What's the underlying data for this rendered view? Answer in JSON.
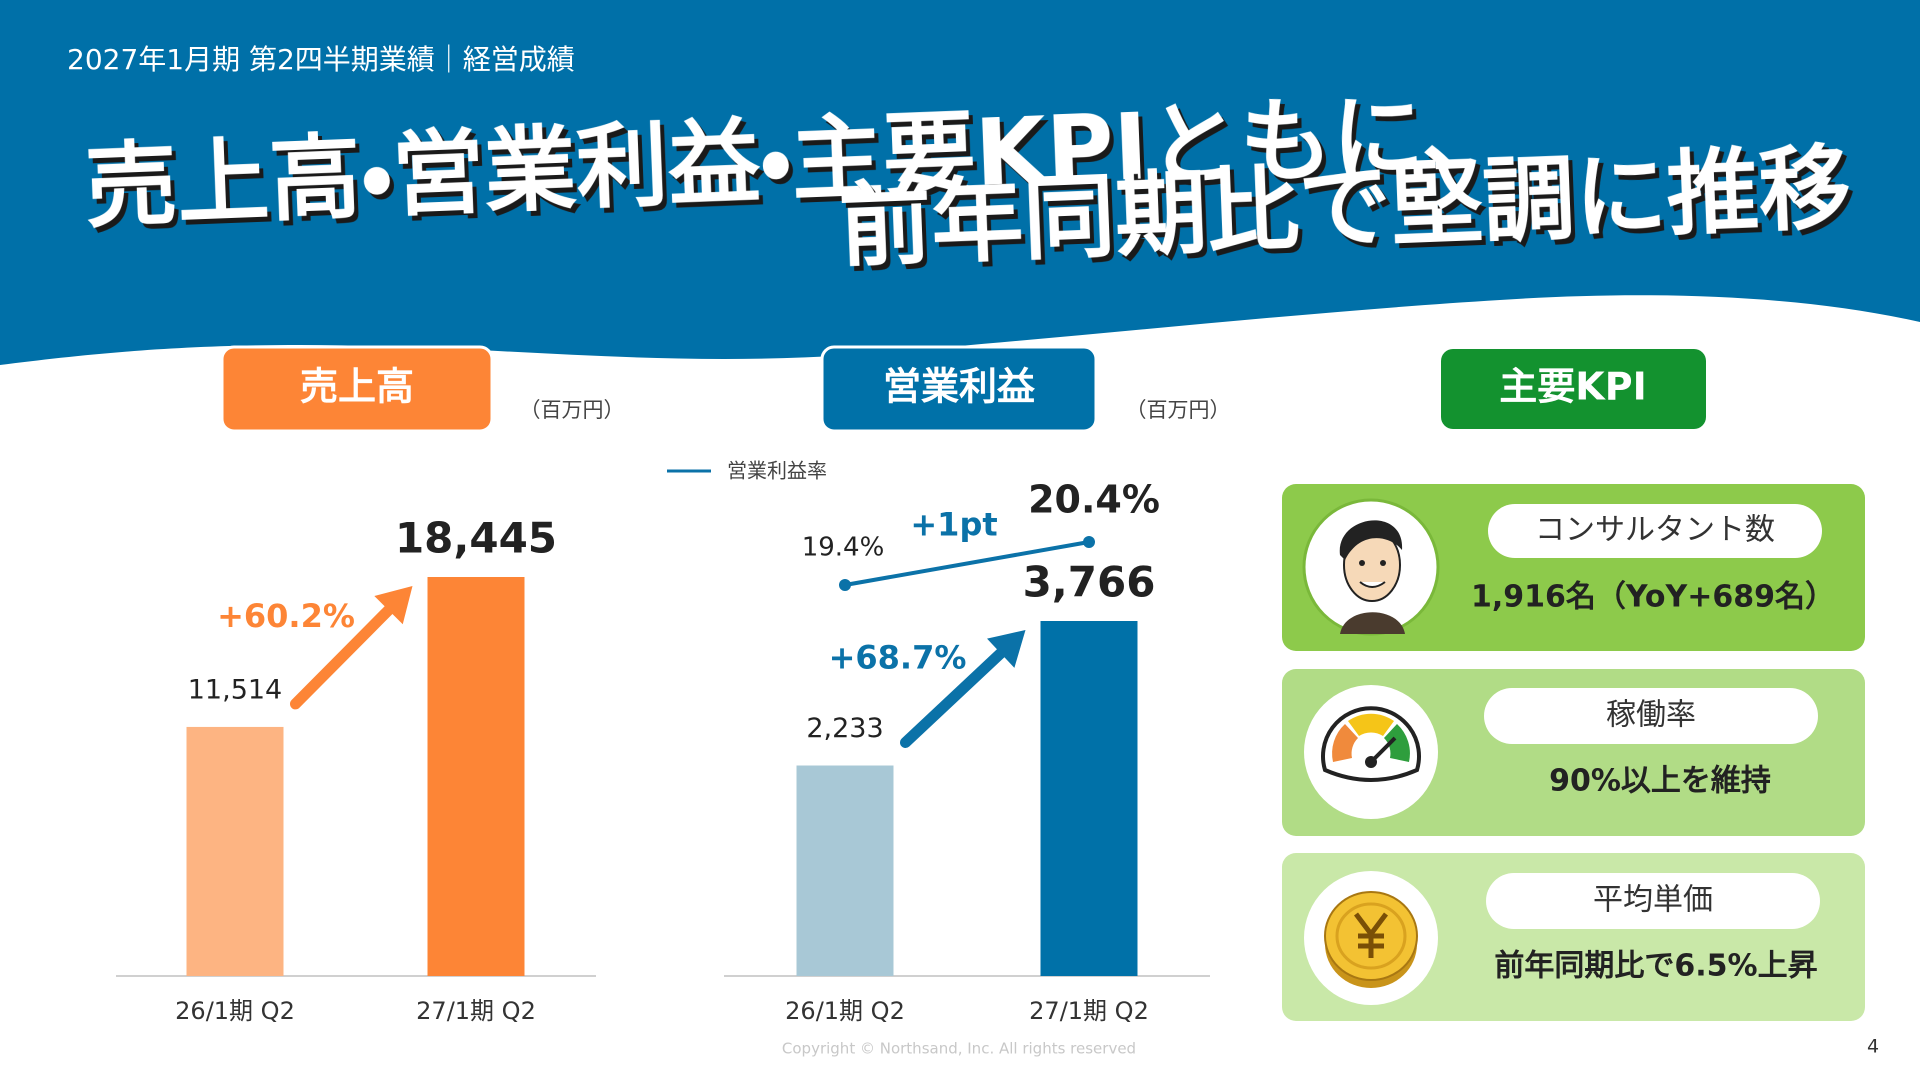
{
  "header": {
    "subtitle": "2027年1月期 第2四半期業績｜経営成績",
    "title_lines": [
      "売上高・営業利益・主要KPIともに、",
      "前年同期比で堅調に推移"
    ]
  },
  "chart_data": [
    {
      "type": "bar",
      "title": "売上高",
      "unit": "（百万円）",
      "categories": [
        "26/1期 Q2",
        "27/1期 Q2"
      ],
      "values": [
        11514,
        18445
      ],
      "value_labels": [
        "11,514",
        "18,445"
      ],
      "colors": [
        "#fdb482",
        "#fd8536"
      ],
      "annotation": "+60.2%"
    },
    {
      "type": "bar",
      "title": "営業利益",
      "unit": "（百万円）",
      "categories": [
        "26/1期 Q2",
        "27/1期 Q2"
      ],
      "values": [
        2233,
        3766
      ],
      "value_labels": [
        "2,233",
        "3,766"
      ],
      "colors": [
        "#a8c8d6",
        "#0071a8"
      ],
      "annotation": "+68.7%",
      "line_series": {
        "name": "営業利益率",
        "color": "#0b72a8",
        "values": [
          19.4,
          20.4
        ],
        "value_labels": [
          "19.4%",
          "20.4%"
        ],
        "annotation": "+1pt"
      }
    }
  ],
  "kpi": {
    "title": "主要KPI",
    "cards": [
      {
        "label": "コンサルタント数",
        "value": "1,916名（YoY+689名）"
      },
      {
        "label": "稼働率",
        "value": "90%以上を維持"
      },
      {
        "label": "平均単価",
        "value": "前年同期比で6.5%上昇"
      }
    ]
  },
  "footer": {
    "copyright": "Copyright © Northsand, Inc. All rights reserved",
    "page": 4
  }
}
